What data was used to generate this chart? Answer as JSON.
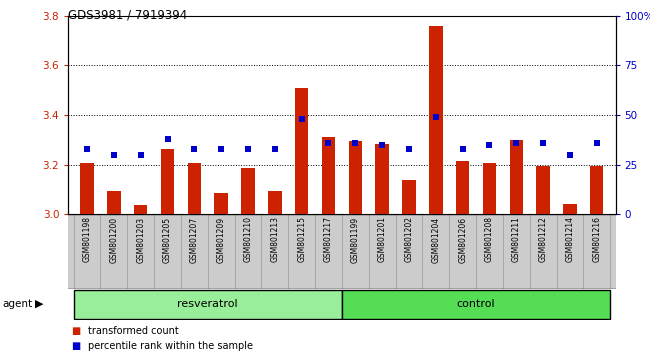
{
  "title": "GDS3981 / 7919394",
  "samples": [
    "GSM801198",
    "GSM801200",
    "GSM801203",
    "GSM801205",
    "GSM801207",
    "GSM801209",
    "GSM801210",
    "GSM801213",
    "GSM801215",
    "GSM801217",
    "GSM801199",
    "GSM801201",
    "GSM801202",
    "GSM801204",
    "GSM801206",
    "GSM801208",
    "GSM801211",
    "GSM801212",
    "GSM801214",
    "GSM801216"
  ],
  "bar_values": [
    3.205,
    3.095,
    3.038,
    3.265,
    3.205,
    3.085,
    3.185,
    3.093,
    3.51,
    3.31,
    3.295,
    3.282,
    3.138,
    3.76,
    3.215,
    3.205,
    3.298,
    3.193,
    3.042,
    3.193
  ],
  "dot_values": [
    33,
    30,
    30,
    38,
    33,
    33,
    33,
    33,
    48,
    36,
    36,
    35,
    33,
    49,
    33,
    35,
    36,
    36,
    30,
    36
  ],
  "n_resveratrol": 10,
  "ymin": 3.0,
  "ymax": 3.8,
  "y2min": 0,
  "y2max": 100,
  "yticks": [
    3.0,
    3.2,
    3.4,
    3.6,
    3.8
  ],
  "y2ticks": [
    0,
    25,
    50,
    75,
    100
  ],
  "bar_color": "#CC2200",
  "dot_color": "#0000CC",
  "resveratrol_color": "#99EE99",
  "control_color": "#55DD55",
  "legend_bar": "transformed count",
  "legend_dot": "percentile rank within the sample",
  "agent_label": "agent",
  "xlabel_resveratrol": "resveratrol",
  "xlabel_control": "control",
  "cell_color": "#CCCCCC",
  "cell_edge_color": "#999999"
}
